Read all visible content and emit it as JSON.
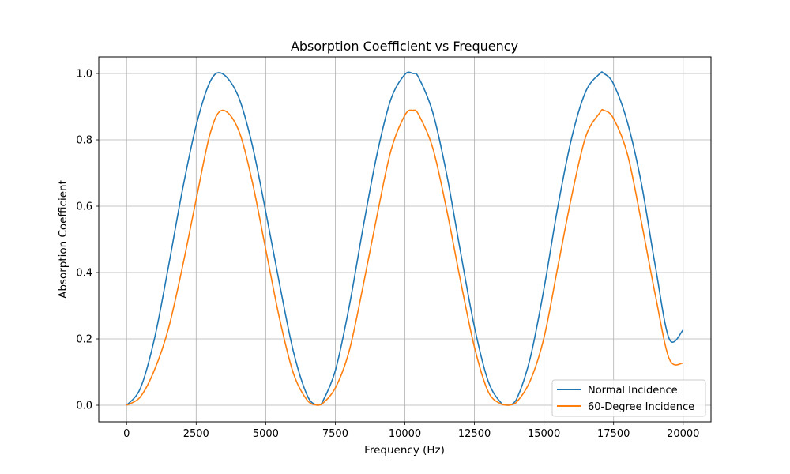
{
  "chart_data": {
    "type": "line",
    "title": "Absorption Coefficient vs Frequency",
    "xlabel": "Frequency (Hz)",
    "ylabel": "Absorption Coefficient",
    "xlim": [
      -1000,
      21000
    ],
    "ylim": [
      -0.05,
      1.05
    ],
    "xticks": [
      0,
      2500,
      5000,
      7500,
      10000,
      12500,
      15000,
      17500,
      20000
    ],
    "xtick_labels": [
      "0",
      "2500",
      "5000",
      "7500",
      "10000",
      "12500",
      "15000",
      "17500",
      "20000"
    ],
    "yticks": [
      0.0,
      0.2,
      0.4,
      0.6,
      0.8,
      1.0
    ],
    "ytick_labels": [
      "0.0",
      "0.2",
      "0.4",
      "0.6",
      "0.8",
      "1.0"
    ],
    "grid": true,
    "legend_position": "lower-right",
    "x": [
      0,
      500,
      1000,
      1500,
      2000,
      2500,
      3000,
      3430,
      4000,
      4500,
      5000,
      5500,
      6000,
      6500,
      6860,
      7000,
      7500,
      8000,
      8500,
      9000,
      9500,
      10000,
      10290,
      10500,
      11000,
      11500,
      12000,
      12500,
      13000,
      13500,
      13720,
      14000,
      14500,
      15000,
      15500,
      16000,
      16500,
      17000,
      17150,
      17500,
      18000,
      18500,
      19000,
      19500,
      20000
    ],
    "series": [
      {
        "name": "Normal Incidence",
        "color": "#1f77b4",
        "values": [
          0.0,
          0.052,
          0.2,
          0.416,
          0.646,
          0.843,
          0.975,
          1.0,
          0.934,
          0.79,
          0.584,
          0.364,
          0.16,
          0.028,
          0.0,
          0.004,
          0.104,
          0.298,
          0.536,
          0.757,
          0.923,
          0.997,
          1.0,
          0.987,
          0.883,
          0.697,
          0.462,
          0.236,
          0.071,
          0.003,
          0.0,
          0.016,
          0.141,
          0.352,
          0.6,
          0.808,
          0.946,
          0.999,
          1.0,
          0.968,
          0.852,
          0.668,
          0.419,
          0.2,
          0.227
        ]
      },
      {
        "name": "60-Degree Incidence",
        "color": "#ff7f0e",
        "values": [
          0.0,
          0.026,
          0.106,
          0.23,
          0.414,
          0.62,
          0.818,
          0.889,
          0.834,
          0.68,
          0.47,
          0.26,
          0.095,
          0.014,
          0.0,
          0.002,
          0.052,
          0.164,
          0.36,
          0.572,
          0.768,
          0.874,
          0.889,
          0.875,
          0.776,
          0.59,
          0.375,
          0.175,
          0.04,
          0.002,
          0.0,
          0.008,
          0.073,
          0.204,
          0.419,
          0.633,
          0.81,
          0.881,
          0.889,
          0.864,
          0.756,
          0.552,
          0.332,
          0.14,
          0.127
        ]
      }
    ]
  }
}
